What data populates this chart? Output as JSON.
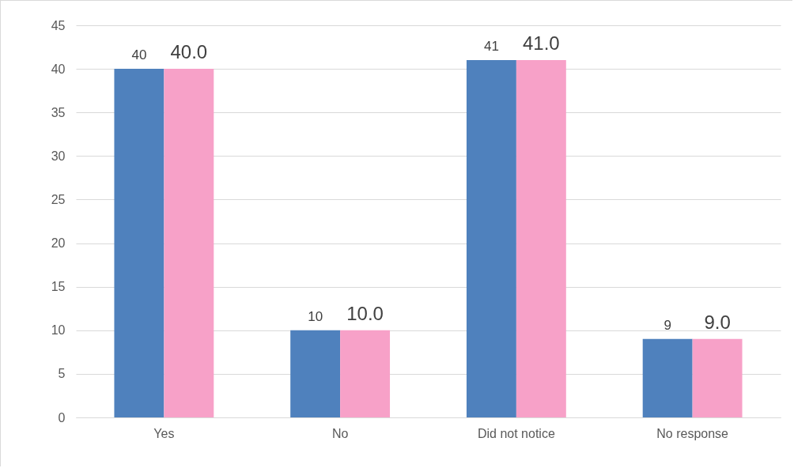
{
  "chart_data": {
    "type": "bar",
    "categories": [
      "Yes",
      "No",
      "Did not notice",
      "No response"
    ],
    "series": [
      {
        "color": "#4f81bd",
        "values": [
          40,
          10,
          41,
          9
        ],
        "value_labels": [
          "40",
          "10",
          "41",
          "9"
        ]
      },
      {
        "color": "#f7a1c8",
        "values": [
          40,
          10,
          41,
          9
        ],
        "value_labels": [
          "40.0",
          "10.0",
          "41.0",
          "9.0"
        ]
      }
    ],
    "ylim": [
      0,
      45
    ],
    "yticks": [
      0,
      5,
      10,
      15,
      20,
      25,
      30,
      35,
      40,
      45
    ],
    "grid": "y",
    "legend": false
  }
}
